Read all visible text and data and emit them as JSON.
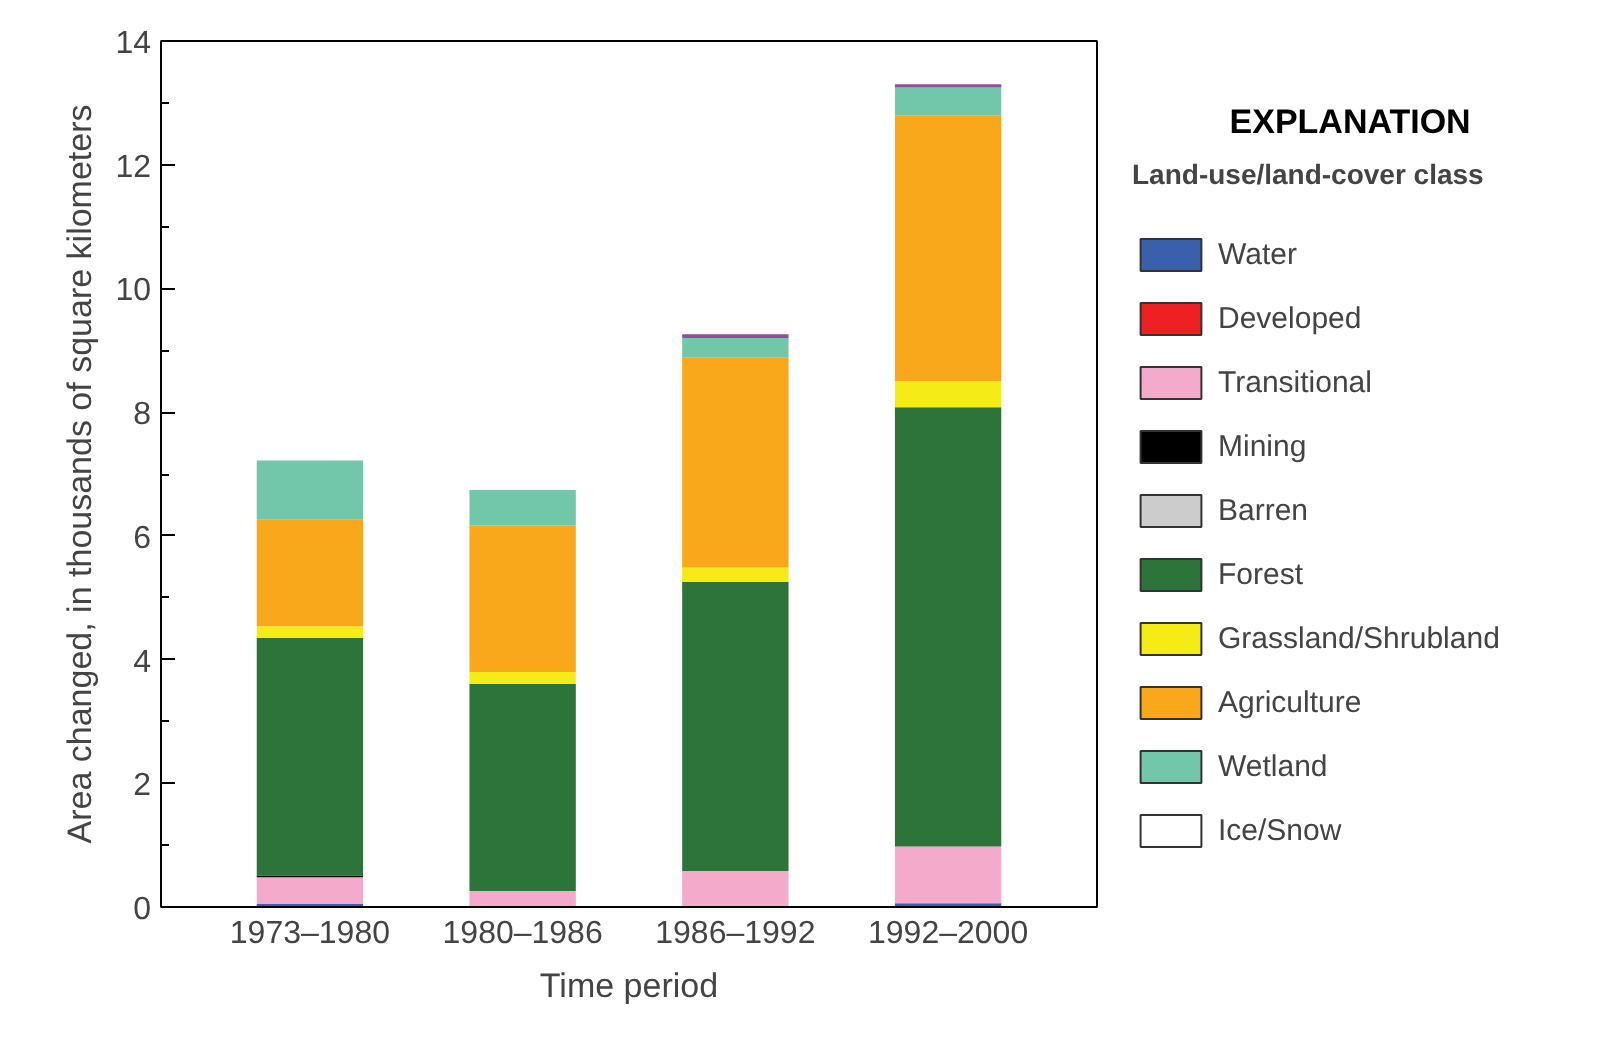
{
  "chart_data": {
    "type": "bar",
    "stacked": true,
    "xlabel": "Time period",
    "ylabel": "Area changed, in thousands of square kilometers",
    "legend_title": "Land-use/land-cover class",
    "annotations": [
      "EXPLANATION"
    ],
    "categories": [
      "1973–1980",
      "1980–1986",
      "1986–1992",
      "1992–2000"
    ],
    "ylim": [
      0,
      14
    ],
    "yticks": [
      0,
      2,
      4,
      6,
      8,
      10,
      12,
      14
    ],
    "grid": false,
    "legend": "right",
    "series": [
      {
        "name": "Water",
        "color": "#3a5fab",
        "values": [
          0.05,
          null,
          null,
          0.06
        ]
      },
      {
        "name": "Developed",
        "color": "#ed2024",
        "values": [
          0,
          0,
          0,
          0
        ]
      },
      {
        "name": "Transitional",
        "color": "#f4aacb",
        "values": [
          0.43,
          0.26,
          0.58,
          0.92
        ]
      },
      {
        "name": "Mining",
        "color": "#000000",
        "values": [
          0.03,
          0,
          0,
          0
        ]
      },
      {
        "name": "Barren",
        "color": "#cccccc",
        "values": [
          0,
          0,
          0,
          0
        ]
      },
      {
        "name": "Forest",
        "color": "#2d743b",
        "values": [
          3.84,
          3.35,
          4.68,
          7.1
        ]
      },
      {
        "name": "Grassland/Shrubland",
        "color": "#f5eb17",
        "values": [
          0.19,
          0.19,
          0.23,
          0.42
        ]
      },
      {
        "name": "Agriculture",
        "color": "#f9a81c",
        "values": [
          1.72,
          2.37,
          3.39,
          4.3
        ]
      },
      {
        "name": "Wetland",
        "color": "#72c7ab",
        "values": [
          0.96,
          0.57,
          0.32,
          0.45
        ]
      },
      {
        "name": "Ice/Snow",
        "color": "#ffffff",
        "values": [
          0,
          0,
          0,
          0
        ]
      },
      {
        "color": "#8e4f9e",
        "values": [
          0,
          0,
          0.06,
          0.05
        ]
      }
    ]
  }
}
